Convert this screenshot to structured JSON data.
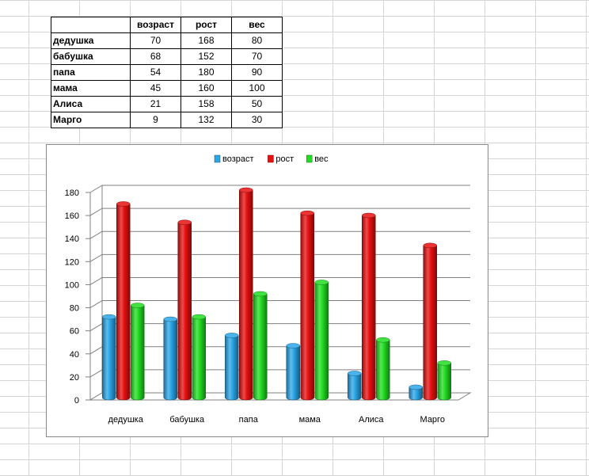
{
  "table": {
    "headers": [
      "",
      "возраст",
      "рост",
      "вес"
    ],
    "rows": [
      {
        "name": "дедушка",
        "values": [
          70,
          168,
          80
        ]
      },
      {
        "name": "бабушка",
        "values": [
          68,
          152,
          70
        ]
      },
      {
        "name": "папа",
        "values": [
          54,
          180,
          90
        ]
      },
      {
        "name": "мама",
        "values": [
          45,
          160,
          100
        ]
      },
      {
        "name": "Алиса",
        "values": [
          21,
          158,
          50
        ]
      },
      {
        "name": "Марго",
        "values": [
          9,
          132,
          30
        ]
      }
    ]
  },
  "chart_data": {
    "type": "bar",
    "style": "3d-cylinder-clustered",
    "categories": [
      "дедушка",
      "бабушка",
      "папа",
      "мама",
      "Алиса",
      "Марго"
    ],
    "series": [
      {
        "name": "возраст",
        "values": [
          70,
          68,
          54,
          45,
          21,
          9
        ],
        "color": "#2aa6e8"
      },
      {
        "name": "рост",
        "values": [
          168,
          152,
          180,
          160,
          158,
          132
        ],
        "color": "#e81010"
      },
      {
        "name": "вес",
        "values": [
          80,
          70,
          90,
          100,
          50,
          30
        ],
        "color": "#22dd22"
      }
    ],
    "yticks": [
      0,
      20,
      40,
      60,
      80,
      100,
      120,
      140,
      160,
      180
    ],
    "ylim": [
      0,
      180
    ],
    "grid": true,
    "legend": "top"
  }
}
